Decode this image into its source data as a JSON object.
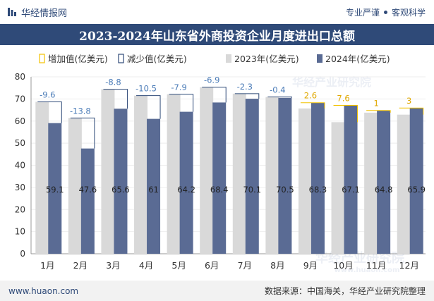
{
  "header": {
    "brand": "华经情报网",
    "tag1": "专业严谨",
    "tag2": "客观科学"
  },
  "colors": {
    "navy": "#2f4a78",
    "bar2023": "#d9d9d9",
    "bar2024": "#5a6b94",
    "increase": "#f2c200",
    "decrease": "#2f4a78",
    "increase_label": "#e0a800",
    "decrease_label": "#4a7bb7"
  },
  "chart_data": {
    "type": "bar",
    "title": "2023-2024年山东省外商投资企业月度进出口总额",
    "categories": [
      "1月",
      "2月",
      "3月",
      "4月",
      "5月",
      "6月",
      "7月",
      "8月",
      "9月",
      "10月",
      "11月",
      "12月"
    ],
    "series": [
      {
        "name": "2023年(亿美元)",
        "values": [
          68.7,
          61.4,
          74.4,
          71.5,
          72.1,
          75.3,
          72.4,
          70.9,
          65.7,
          59.5,
          63.8,
          62.9
        ]
      },
      {
        "name": "2024年(亿美元)",
        "values": [
          59.1,
          47.6,
          65.6,
          61,
          64.2,
          68.4,
          70.1,
          70.5,
          68.3,
          67.1,
          64.8,
          65.9
        ]
      }
    ],
    "change_labels": [
      "-9.6",
      "-13.8",
      "-8.8",
      "-10.5",
      "-7.9",
      "-6.9",
      "-2.3",
      "-0.4",
      "2.6",
      "7.6",
      "1",
      "3"
    ],
    "change_directions": [
      "down",
      "down",
      "down",
      "down",
      "down",
      "down",
      "down",
      "down",
      "up",
      "up",
      "up",
      "up"
    ],
    "legend": [
      "增加值(亿美元)",
      "减少值(亿美元)",
      "2023年(亿美元)",
      "2024年(亿美元)"
    ],
    "ylim": [
      0,
      80
    ],
    "yticks": [
      "0",
      "10",
      "20",
      "30",
      "40",
      "50",
      "60",
      "70",
      "80"
    ],
    "watermark": "华经产业研究院",
    "watermark_url": "www.huaon.com"
  },
  "footer": {
    "site": "www.huaon.com",
    "source": "数据来源：中国海关，华经产业研究院整理"
  }
}
